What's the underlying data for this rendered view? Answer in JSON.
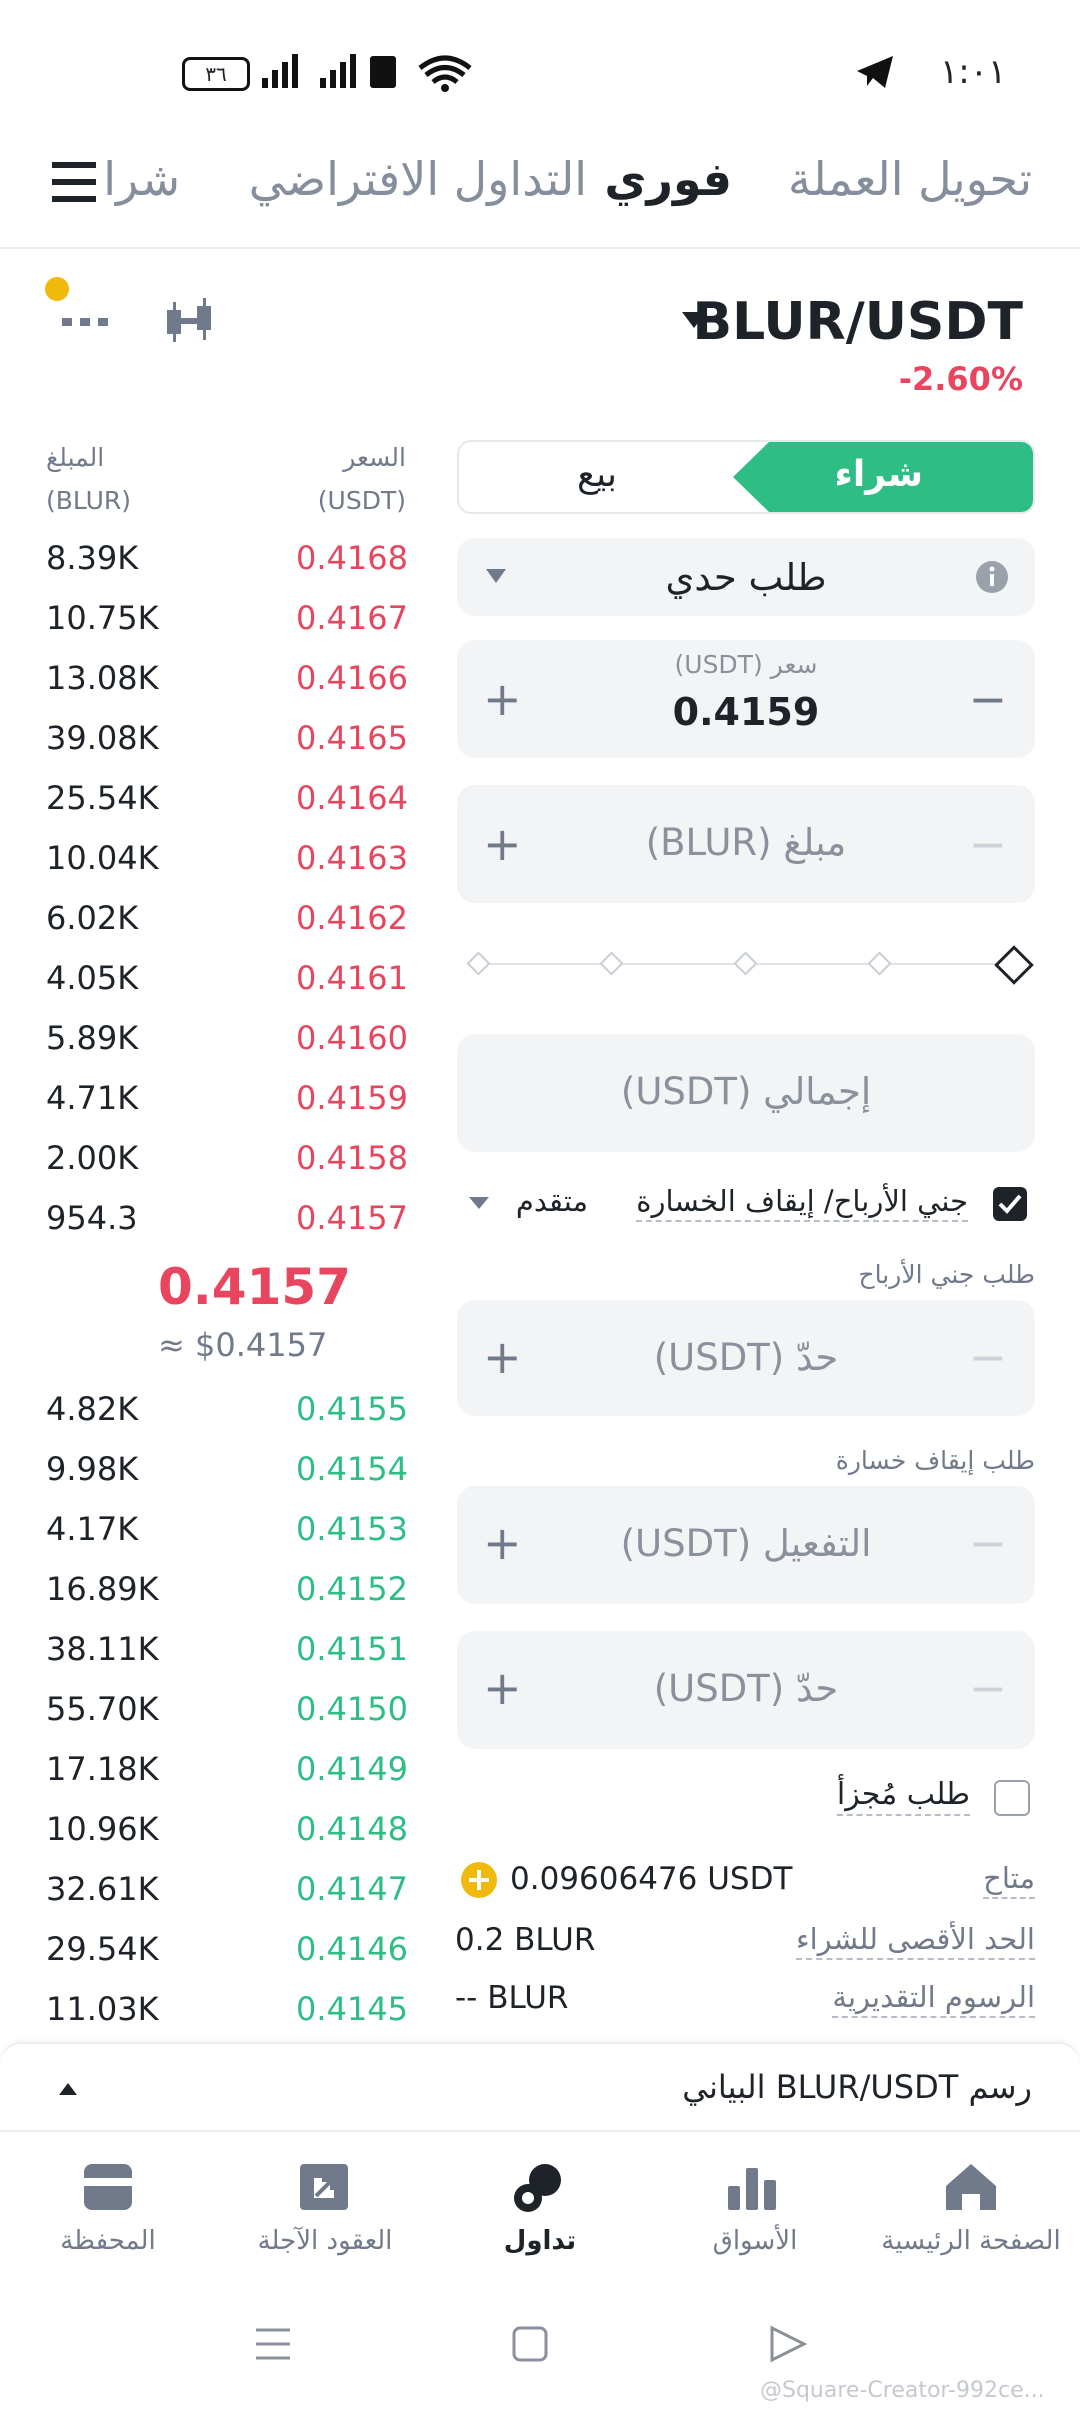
{
  "status_bar": {
    "time": "١:٠١",
    "battery": "٣٦"
  },
  "tabs": [
    "تحويل العملة",
    "فوري",
    "التداول الافتراضي",
    "شرا"
  ],
  "pair": {
    "symbol": "BLUR/USDT",
    "change": "-2.60%"
  },
  "order_book": {
    "price_header": "السعر",
    "price_unit": "(USDT)",
    "amount_header": "المبلغ",
    "amount_unit": "(BLUR)",
    "asks": [
      [
        "0.4168",
        "8.39K"
      ],
      [
        "0.4167",
        "10.75K"
      ],
      [
        "0.4166",
        "13.08K"
      ],
      [
        "0.4165",
        "39.08K"
      ],
      [
        "0.4164",
        "25.54K"
      ],
      [
        "0.4163",
        "10.04K"
      ],
      [
        "0.4162",
        "6.02K"
      ],
      [
        "0.4161",
        "4.05K"
      ],
      [
        "0.4160",
        "5.89K"
      ],
      [
        "0.4159",
        "4.71K"
      ],
      [
        "0.4158",
        "2.00K"
      ],
      [
        "0.4157",
        "954.3"
      ]
    ],
    "last_price": "0.4157",
    "last_price_usd": "≈ $0.4157",
    "bids": [
      [
        "0.4155",
        "4.82K"
      ],
      [
        "0.4154",
        "9.98K"
      ],
      [
        "0.4153",
        "4.17K"
      ],
      [
        "0.4152",
        "16.89K"
      ],
      [
        "0.4151",
        "38.11K"
      ],
      [
        "0.4150",
        "55.70K"
      ],
      [
        "0.4149",
        "17.18K"
      ],
      [
        "0.4148",
        "10.96K"
      ],
      [
        "0.4147",
        "32.61K"
      ],
      [
        "0.4146",
        "29.54K"
      ],
      [
        "0.4145",
        "11.03K"
      ]
    ]
  },
  "form": {
    "buy": "شراء",
    "sell": "بيع",
    "order_type": "طلب حدي",
    "price_label": "سعر (USDT)",
    "price_value": "0.4159",
    "amount_placeholder": "مبلغ (BLUR)",
    "total_placeholder": "إجمالي (USDT)",
    "tpsl": "جني الأرباح/ إيقاف الخسارة",
    "advanced": "متقدم",
    "take_profit_label": "طلب جني الأرباح",
    "take_profit_limit": "حدّ (USDT)",
    "stop_loss_label": "طلب إيقاف خسارة",
    "stop_loss_trigger": "التفعيل (USDT)",
    "stop_loss_limit": "حدّ (USDT)",
    "iceberg": "طلب مُجزأ",
    "available_label": "متاح",
    "available_value": "0.09606476 USDT",
    "max_buy_label": "الحد الأقصى للشراء",
    "max_buy_value": "0.2 BLUR",
    "fees_label": "الرسوم التقديرية",
    "fees_value": "-- BLUR"
  },
  "chart_bar": "رسم BLUR/USDT البياني",
  "nav": [
    "الصفحة الرئيسية",
    "الأسواق",
    "تداول",
    "العقود الآجلة",
    "المحفظة"
  ],
  "watermark": "@Square-Creator-992ce..."
}
